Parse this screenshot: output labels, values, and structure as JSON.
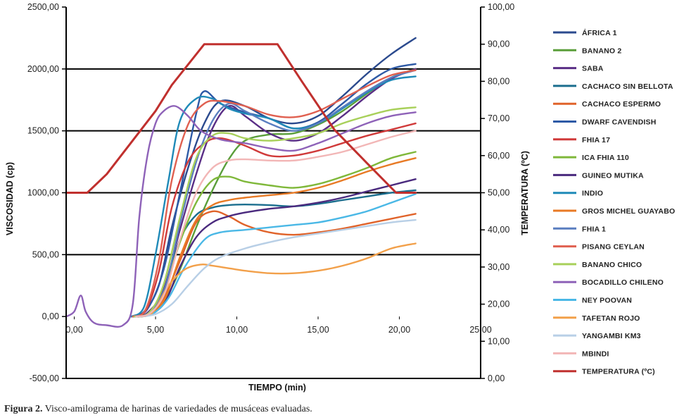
{
  "chart_data": {
    "type": "line",
    "xlabel": "TIEMPO (min)",
    "ylabel": "VISCOSIDAD (cp)",
    "y2label": "TEMPERATURA (ºC)",
    "xlim": [
      -0.5,
      25.0
    ],
    "ylim": [
      -500,
      2500
    ],
    "y2lim": [
      0,
      100
    ],
    "x_ticks": [
      "0,00",
      "5,00",
      "10,00",
      "15,00",
      "20,00",
      "25,00"
    ],
    "x_tick_values": [
      0,
      5,
      10,
      15,
      20,
      25
    ],
    "y_ticks": [
      "2500,00",
      "2000,00",
      "1500,00",
      "1000,00",
      "500,00",
      "0,00",
      "-500,00"
    ],
    "y_tick_values": [
      2500,
      2000,
      1500,
      1000,
      500,
      0,
      -500
    ],
    "y2_ticks": [
      "100,00",
      "90,00",
      "80,00",
      "70,00",
      "60,00",
      "50,00",
      "40,00",
      "30,00",
      "20,00",
      "10,00",
      "0,00"
    ],
    "y2_tick_values": [
      100,
      90,
      80,
      70,
      60,
      50,
      40,
      30,
      20,
      10,
      0
    ],
    "gridlines_y": [
      2000,
      1500,
      1000,
      500
    ],
    "legend_position": "right",
    "series": [
      {
        "name": "ÁFRICA 1",
        "color": "#2b4a8e",
        "x": [
          3.5,
          4.3,
          5.2,
          6.0,
          7.0,
          8.0,
          9.0,
          10.5,
          12.0,
          13.5,
          15.0,
          16.5,
          18.0,
          19.5,
          21.0
        ],
        "values": [
          0,
          40,
          250,
          720,
          1200,
          1560,
          1740,
          1700,
          1600,
          1560,
          1620,
          1780,
          1960,
          2120,
          2250
        ]
      },
      {
        "name": "BANANO 2",
        "color": "#5a9e3a",
        "x": [
          3.5,
          4.5,
          5.5,
          6.5,
          7.5,
          8.5,
          9.5,
          10.5,
          12.0,
          13.5,
          15.0,
          16.5,
          18.0,
          19.5,
          21.0
        ],
        "values": [
          0,
          20,
          120,
          380,
          720,
          1020,
          1270,
          1420,
          1470,
          1480,
          1550,
          1660,
          1800,
          1930,
          2000
        ]
      },
      {
        "name": "SABA",
        "color": "#5a2e86",
        "x": [
          3.6,
          4.5,
          5.5,
          6.5,
          7.5,
          8.5,
          9.5,
          10.5,
          12.0,
          13.5,
          15.0,
          16.5,
          18.0,
          19.5,
          21.0
        ],
        "values": [
          0,
          30,
          220,
          700,
          1150,
          1520,
          1700,
          1620,
          1480,
          1420,
          1480,
          1620,
          1780,
          1920,
          2000
        ]
      },
      {
        "name": "CACHACO SIN BELLOTA",
        "color": "#1b6e8e",
        "x": [
          3.6,
          4.5,
          5.5,
          6.5,
          7.5,
          8.5,
          9.5,
          10.5,
          12.0,
          13.5,
          15.0,
          16.5,
          18.0,
          19.5,
          21.0
        ],
        "values": [
          0,
          20,
          200,
          620,
          820,
          880,
          900,
          905,
          900,
          890,
          910,
          940,
          970,
          1000,
          1020
        ]
      },
      {
        "name": "CACHACO ESPERMO",
        "color": "#e0632a",
        "x": [
          3.8,
          4.6,
          5.5,
          6.5,
          7.5,
          8.5,
          9.5,
          10.5,
          12.0,
          13.5,
          15.0,
          16.5,
          18.0,
          19.5,
          21.0
        ],
        "values": [
          0,
          20,
          150,
          450,
          760,
          850,
          810,
          740,
          680,
          660,
          680,
          710,
          750,
          790,
          830
        ]
      },
      {
        "name": "DWARF CAVENDISH",
        "color": "#2e5aa6",
        "x": [
          3.6,
          4.5,
          5.5,
          6.5,
          7.5,
          8.0,
          9.0,
          10.5,
          12.0,
          13.5,
          15.0,
          16.5,
          18.0,
          19.5,
          21.0
        ],
        "values": [
          0,
          60,
          380,
          1000,
          1640,
          1820,
          1720,
          1650,
          1600,
          1520,
          1570,
          1720,
          1880,
          2000,
          2040
        ]
      },
      {
        "name": "FHIA 17",
        "color": "#d03a3a",
        "x": [
          3.6,
          4.4,
          5.2,
          6.0,
          7.0,
          8.0,
          9.0,
          10.5,
          12.0,
          13.5,
          15.0,
          16.5,
          18.0,
          19.5,
          21.0
        ],
        "values": [
          0,
          50,
          360,
          880,
          1250,
          1400,
          1440,
          1380,
          1300,
          1300,
          1340,
          1400,
          1460,
          1510,
          1560
        ]
      },
      {
        "name": "ICA FHIA 110",
        "color": "#7fb83a",
        "x": [
          3.7,
          4.6,
          5.5,
          6.5,
          7.5,
          8.5,
          9.5,
          10.5,
          12.0,
          13.5,
          15.0,
          16.5,
          18.0,
          19.5,
          21.0
        ],
        "values": [
          0,
          30,
          200,
          600,
          920,
          1100,
          1130,
          1090,
          1060,
          1040,
          1070,
          1130,
          1200,
          1280,
          1330
        ]
      },
      {
        "name": "GUINEO MUTIKA",
        "color": "#4a2a7e",
        "x": [
          3.8,
          4.7,
          5.6,
          6.5,
          7.5,
          8.5,
          9.5,
          10.5,
          12.0,
          13.5,
          15.0,
          16.5,
          18.0,
          19.5,
          21.0
        ],
        "values": [
          0,
          20,
          120,
          400,
          640,
          760,
          810,
          840,
          870,
          890,
          920,
          960,
          1010,
          1060,
          1110
        ]
      },
      {
        "name": "INDIO",
        "color": "#1f8ab8",
        "x": [
          3.5,
          4.3,
          5.0,
          5.8,
          6.5,
          7.5,
          8.5,
          9.5,
          10.5,
          12.0,
          13.5,
          15.0,
          16.5,
          18.0,
          19.5,
          21.0
        ],
        "values": [
          0,
          80,
          500,
          1100,
          1580,
          1760,
          1760,
          1680,
          1640,
          1600,
          1520,
          1560,
          1680,
          1810,
          1910,
          1940
        ]
      },
      {
        "name": "GROS MICHEL GUAYABO",
        "color": "#e87a25",
        "x": [
          3.8,
          4.7,
          5.6,
          6.5,
          7.5,
          8.5,
          9.5,
          10.5,
          12.0,
          13.5,
          15.0,
          16.5,
          18.0,
          19.5,
          21.0
        ],
        "values": [
          0,
          20,
          150,
          480,
          780,
          900,
          940,
          960,
          980,
          1000,
          1040,
          1100,
          1170,
          1230,
          1280
        ]
      },
      {
        "name": "FHIA 1",
        "color": "#5a7ec0",
        "x": [
          3.7,
          4.6,
          5.6,
          6.5,
          7.5,
          8.5,
          9.5,
          10.5,
          12.0,
          13.5,
          15.0,
          16.5,
          18.0,
          19.5,
          21.0
        ],
        "values": [
          0,
          30,
          240,
          750,
          1250,
          1580,
          1720,
          1660,
          1560,
          1500,
          1560,
          1690,
          1820,
          1930,
          1990
        ]
      },
      {
        "name": "PISANG CEYLAN",
        "color": "#e06050",
        "x": [
          3.6,
          4.4,
          5.2,
          6.0,
          7.0,
          8.0,
          9.0,
          10.5,
          12.0,
          13.5,
          15.0,
          16.5,
          18.0,
          19.5,
          21.0
        ],
        "values": [
          0,
          60,
          450,
          1100,
          1550,
          1720,
          1740,
          1700,
          1630,
          1610,
          1660,
          1760,
          1860,
          1950,
          1990
        ]
      },
      {
        "name": "BANANO CHICO",
        "color": "#a8d05a",
        "x": [
          3.7,
          4.6,
          5.5,
          6.5,
          7.5,
          8.5,
          9.5,
          10.5,
          12.0,
          13.5,
          15.0,
          16.5,
          18.0,
          19.5,
          21.0
        ],
        "values": [
          0,
          30,
          260,
          800,
          1280,
          1460,
          1480,
          1440,
          1420,
          1440,
          1480,
          1560,
          1620,
          1670,
          1690
        ]
      },
      {
        "name": "BOCADILLO CHILENO",
        "color": "#8e62b8",
        "x": [
          -0.5,
          0.0,
          0.4,
          0.7,
          1.2,
          2.0,
          3.0,
          3.6,
          4.0,
          4.5,
          5.0,
          5.5,
          6.2,
          7.0,
          7.8,
          9.0,
          10.5,
          12.0,
          13.5,
          15.0,
          16.5,
          18.0,
          19.5,
          21.0
        ],
        "values": [
          0,
          40,
          170,
          40,
          -50,
          -70,
          -70,
          100,
          800,
          1300,
          1560,
          1660,
          1700,
          1620,
          1500,
          1430,
          1400,
          1360,
          1340,
          1400,
          1480,
          1560,
          1620,
          1650
        ]
      },
      {
        "name": "NEY POOVAN",
        "color": "#4ab8e6",
        "x": [
          3.8,
          4.8,
          5.8,
          6.8,
          8.0,
          9.0,
          10.5,
          12.0,
          13.5,
          15.0,
          16.5,
          18.0,
          19.5,
          21.0
        ],
        "values": [
          0,
          20,
          150,
          400,
          620,
          680,
          700,
          720,
          740,
          760,
          800,
          850,
          920,
          990
        ]
      },
      {
        "name": "TAFETAN ROJO",
        "color": "#f2a04a",
        "x": [
          3.9,
          4.8,
          5.8,
          6.8,
          7.8,
          8.5,
          9.5,
          10.5,
          12.0,
          13.5,
          15.0,
          16.5,
          18.0,
          19.5,
          21.0
        ],
        "values": [
          0,
          30,
          250,
          380,
          420,
          410,
          390,
          370,
          350,
          350,
          370,
          410,
          470,
          550,
          590
        ]
      },
      {
        "name": "YANGAMBI KM3",
        "color": "#b8cfe6",
        "x": [
          4.0,
          5.0,
          6.0,
          7.0,
          8.0,
          9.0,
          10.5,
          12.0,
          13.5,
          15.0,
          16.5,
          18.0,
          19.5,
          21.0
        ],
        "values": [
          0,
          20,
          100,
          250,
          390,
          480,
          550,
          600,
          640,
          670,
          700,
          730,
          760,
          780
        ]
      },
      {
        "name": "MBINDI",
        "color": "#f2b6b6",
        "x": [
          3.8,
          4.7,
          5.6,
          6.5,
          7.5,
          8.5,
          9.5,
          10.5,
          12.0,
          13.5,
          15.0,
          16.5,
          18.0,
          19.5,
          21.0
        ],
        "values": [
          0,
          30,
          200,
          620,
          1000,
          1200,
          1260,
          1270,
          1260,
          1260,
          1290,
          1330,
          1390,
          1450,
          1500
        ]
      },
      {
        "name": "TEMPERATURA (ºC)",
        "color": "#c0302e",
        "axis": "right",
        "x": [
          -0.5,
          0.4,
          0.8,
          2.0,
          5.0,
          6.0,
          8.0,
          11.0,
          12.5,
          14.0,
          16.0,
          18.0,
          19.8,
          21.0
        ],
        "values": [
          50,
          50,
          50,
          55,
          72,
          79,
          90,
          90,
          90,
          80,
          67,
          58,
          50,
          50
        ]
      }
    ]
  },
  "caption": {
    "label": "Figura 2.",
    "text": "Visco-amilograma de harinas de variedades de musáceas evaluadas."
  }
}
